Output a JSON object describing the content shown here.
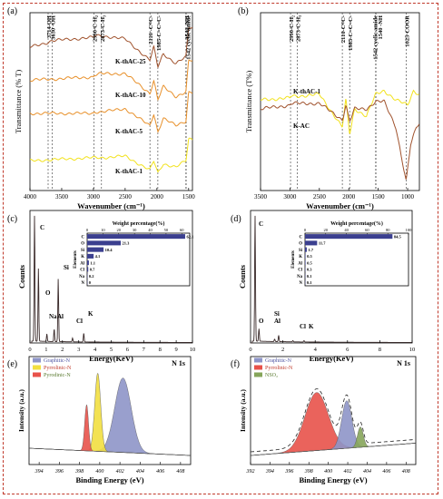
{
  "panels": {
    "a": {
      "letter": "(a)",
      "xlabel": "Wavenumber (cm⁻¹)",
      "ylabel": "Transmittance (% T)",
      "xticks": [
        "4000",
        "3500",
        "3000",
        "2500",
        "2000",
        "1500"
      ],
      "bands": [
        "3650 -OH",
        "3714-OH",
        "2990-C-H₂",
        "2873-C-H₃",
        "2110 -C≡C-",
        "1985-C=C=C-",
        "1540 -NH",
        "1542 cyclic amide"
      ],
      "curve_labels": [
        "K-thAC-25",
        "K-thAC-10",
        "K-thAC-5",
        "K-thAC-1"
      ]
    },
    "b": {
      "letter": "(b)",
      "xlabel": "Wavenumber (cm⁻¹)",
      "ylabel": "Transmittance (T%)",
      "xticks": [
        "3500",
        "3000",
        "2500",
        "2000",
        "1500",
        "1000"
      ],
      "bands": [
        "2990-C-H₂",
        "2873-C-H₃",
        "2110-C≡C-",
        "1985-C=C=C-",
        "1542 cyclic amide",
        "1540 -NH",
        "1025-COOR"
      ],
      "curve_labels": [
        "K-thAC-1",
        "K-AC"
      ]
    },
    "c": {
      "letter": "(c)",
      "xlabel": "Energy(KeV)",
      "ylabel": "Counts",
      "xticks": [
        "0",
        "1",
        "2",
        "3",
        "4",
        "5",
        "6",
        "7",
        "8",
        "9",
        "10"
      ],
      "peak_labels": [
        "C",
        "O",
        "Na",
        "Al",
        "Cl",
        "Si",
        "K"
      ],
      "inset": {
        "title": "Weight percentage(%)",
        "ylabel": "Elements",
        "xticks": [
          "0",
          "10",
          "20",
          "30",
          "40",
          "50",
          "60"
        ],
        "elements": [
          "C",
          "O",
          "Si",
          "K",
          "Al",
          "Cl",
          "Na",
          "N"
        ],
        "values": [
          62.1,
          21.3,
          10.4,
          4.1,
          1.1,
          0.7,
          0.2,
          0
        ],
        "value_labels": [
          "62.1",
          "21.3",
          "10.4",
          "4.1",
          "1.1",
          "0.7",
          "0.2",
          "0"
        ]
      }
    },
    "d": {
      "letter": "(d)",
      "xlabel": "Energy(KeV)",
      "ylabel": "Counts",
      "xticks": [
        "0",
        "2",
        "4",
        "6",
        "8",
        "10"
      ],
      "peak_labels": [
        "C",
        "O",
        "Si",
        "Al",
        "Cl",
        "K"
      ],
      "inset": {
        "title": "Weight percentage(%)",
        "ylabel": "Elements",
        "xticks": [
          "0",
          "20",
          "40",
          "60",
          "80",
          "100"
        ],
        "elements": [
          "C",
          "O",
          "Si",
          "K",
          "Al",
          "Cl",
          "Na",
          "N"
        ],
        "values": [
          84.5,
          11.7,
          1.7,
          0.5,
          0.5,
          0.3,
          0.1,
          0.1
        ],
        "value_labels": [
          "84.5",
          "11.7",
          "1.7",
          "0.5",
          "0.5",
          "0.3",
          "0.1",
          "0.1"
        ]
      }
    },
    "e": {
      "letter": "(e)",
      "title": "N 1s",
      "xlabel": "Binding Energy (eV)",
      "ylabel": "Intensity (a.u.)",
      "xticks": [
        "394",
        "396",
        "398",
        "400",
        "402",
        "404",
        "406",
        "408"
      ],
      "legend": [
        "Graphitic-N",
        "Pyrrolinic-N",
        "Pyrodinic-N"
      ]
    },
    "f": {
      "letter": "(f)",
      "title": "N 1s",
      "xlabel": "Binding Energy (eV)",
      "ylabel": "Intensity (a.u.)",
      "xticks": [
        "392",
        "394",
        "396",
        "398",
        "400",
        "402",
        "404",
        "406",
        "408"
      ],
      "legend": [
        "Graphitic-N",
        "Pyrrolinic-N",
        "NSO₂"
      ]
    }
  },
  "colors": {
    "frame": "#c0392b",
    "ftir_red": "#a0522d",
    "ftir_orange": "#e8902a",
    "ftir_yellow": "#f2e21c",
    "bar": "#3b3f8f",
    "graphitic": "#8e95c8",
    "pyrrolinic": "#f2df40",
    "pyrodinic": "#e8524a",
    "nso2": "#86a55a"
  },
  "chart_data": [
    {
      "type": "line",
      "panel": "a",
      "xlabel": "Wavenumber (cm⁻¹)",
      "ylabel": "Transmittance (% T)",
      "xlim": [
        4000,
        1400
      ],
      "series": [
        {
          "name": "K-thAC-25",
          "x": [
            4000,
            3714,
            3650,
            3000,
            2990,
            2873,
            2500,
            2110,
            2050,
            1985,
            1900,
            1700,
            1542,
            1500
          ],
          "y": [
            0.3,
            0.33,
            0.34,
            0.36,
            0.37,
            0.37,
            0.35,
            0.22,
            0.3,
            0.18,
            0.26,
            0.2,
            0.24,
            0.42
          ]
        },
        {
          "name": "K-thAC-10",
          "x": [
            4000,
            3000,
            2990,
            2873,
            2500,
            2110,
            2050,
            1985,
            1900,
            1700,
            1542,
            1500
          ],
          "y": [
            0.32,
            0.34,
            0.35,
            0.36,
            0.36,
            0.24,
            0.32,
            0.2,
            0.28,
            0.22,
            0.25,
            0.44
          ]
        },
        {
          "name": "K-thAC-5",
          "x": [
            4000,
            3000,
            2990,
            2873,
            2500,
            2110,
            2050,
            1985,
            1900,
            1700,
            1542,
            1500
          ],
          "y": [
            0.3,
            0.3,
            0.31,
            0.31,
            0.33,
            0.22,
            0.3,
            0.18,
            0.27,
            0.22,
            0.25,
            0.44
          ]
        },
        {
          "name": "K-thAC-1",
          "x": [
            4000,
            3000,
            2990,
            2873,
            2500,
            2110,
            2050,
            1985,
            1900,
            1700,
            1542,
            1500
          ],
          "y": [
            0.24,
            0.26,
            0.26,
            0.26,
            0.27,
            0.18,
            0.24,
            0.16,
            0.22,
            0.2,
            0.24,
            0.38
          ]
        }
      ]
    },
    {
      "type": "line",
      "panel": "b",
      "xlabel": "Wavenumber (cm⁻¹)",
      "ylabel": "Transmittance (T%)",
      "xlim": [
        3500,
        800
      ],
      "series": [
        {
          "name": "K-thAC-1",
          "x": [
            3500,
            3000,
            2990,
            2873,
            2500,
            2110,
            2050,
            1985,
            1900,
            1700,
            1542,
            1400,
            1200,
            1000,
            900,
            800
          ],
          "y": [
            0.55,
            0.56,
            0.57,
            0.57,
            0.58,
            0.4,
            0.55,
            0.36,
            0.5,
            0.46,
            0.58,
            0.6,
            0.55,
            0.52,
            0.6,
            0.58
          ]
        },
        {
          "name": "K-AC",
          "x": [
            3500,
            3000,
            2990,
            2873,
            2500,
            2110,
            2050,
            1985,
            1900,
            1700,
            1542,
            1400,
            1200,
            1025,
            950,
            850,
            800
          ],
          "y": [
            0.4,
            0.42,
            0.43,
            0.43,
            0.43,
            0.34,
            0.42,
            0.33,
            0.4,
            0.4,
            0.44,
            0.44,
            0.3,
            0.0,
            0.2,
            0.3,
            0.32
          ]
        }
      ]
    },
    {
      "type": "bar",
      "panel": "c-inset",
      "title": "Weight percentage(%)",
      "categories": [
        "C",
        "O",
        "Si",
        "K",
        "Al",
        "Cl",
        "Na",
        "N"
      ],
      "values": [
        62.1,
        21.3,
        10.4,
        4.1,
        1.1,
        0.7,
        0.2,
        0
      ],
      "xlim": [
        0,
        65
      ]
    },
    {
      "type": "line",
      "panel": "c",
      "xlabel": "Energy(KeV)",
      "ylabel": "Counts",
      "xlim": [
        0,
        10
      ],
      "peaks": [
        {
          "label": "C",
          "x": 0.28,
          "height": 1.0
        },
        {
          "label": "O",
          "x": 0.52,
          "height": 0.58
        },
        {
          "label": "Na",
          "x": 1.04,
          "height": 0.06
        },
        {
          "label": "Al",
          "x": 1.49,
          "height": 0.1
        },
        {
          "label": "Si",
          "x": 1.74,
          "height": 0.5
        },
        {
          "label": "Cl",
          "x": 2.62,
          "height": 0.03
        },
        {
          "label": "K",
          "x": 3.31,
          "height": 0.07
        }
      ]
    },
    {
      "type": "bar",
      "panel": "d-inset",
      "title": "Weight percentage(%)",
      "categories": [
        "C",
        "O",
        "Si",
        "K",
        "Al",
        "Cl",
        "Na",
        "N"
      ],
      "values": [
        84.5,
        11.7,
        1.7,
        0.5,
        0.5,
        0.3,
        0.1,
        0.1
      ],
      "xlim": [
        0,
        100
      ]
    },
    {
      "type": "line",
      "panel": "d",
      "xlabel": "Energy(KeV)",
      "ylabel": "Counts",
      "xlim": [
        0,
        10
      ],
      "peaks": [
        {
          "label": "C",
          "x": 0.28,
          "height": 1.0
        },
        {
          "label": "O",
          "x": 0.52,
          "height": 0.1
        },
        {
          "label": "Al",
          "x": 1.49,
          "height": 0.02
        },
        {
          "label": "Si",
          "x": 1.74,
          "height": 0.05
        },
        {
          "label": "Cl",
          "x": 2.62,
          "height": 0.01
        },
        {
          "label": "K",
          "x": 3.31,
          "height": 0.01
        }
      ]
    },
    {
      "type": "area",
      "panel": "e",
      "xlabel": "Binding Energy (eV)",
      "ylabel": "Intensity (a.u.)",
      "xlim": [
        393,
        409
      ],
      "series": [
        {
          "name": "Graphitic-N",
          "center": 402.3,
          "width": 1.15,
          "height": 1.0
        },
        {
          "name": "Pyrrolinic-N",
          "center": 399.8,
          "width": 0.42,
          "height": 1.05
        },
        {
          "name": "Pyrodinic-N",
          "center": 398.7,
          "width": 0.27,
          "height": 0.62
        }
      ]
    },
    {
      "type": "area",
      "panel": "f",
      "xlabel": "Binding Energy (eV)",
      "ylabel": "Intensity (a.u.)",
      "xlim": [
        392,
        409
      ],
      "series": [
        {
          "name": "Graphitic-N",
          "center": 401.9,
          "width": 0.75,
          "height": 0.82
        },
        {
          "name": "Pyrrolinic-N",
          "center": 398.8,
          "width": 1.7,
          "height": 1.0
        },
        {
          "name": "NSO₂",
          "center": 403.3,
          "width": 0.42,
          "height": 0.35
        }
      ]
    }
  ]
}
